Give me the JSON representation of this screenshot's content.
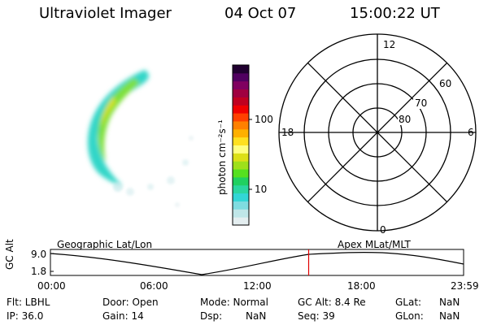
{
  "header": {
    "instrument": "Ultraviolet Imager",
    "date": "04 Oct 07",
    "time": "15:00:22 UT"
  },
  "colorbar": {
    "label": "photon cm⁻²s⁻¹",
    "ticks": [
      "100",
      "10"
    ],
    "colors": [
      "#e4eef0",
      "#bfe6e8",
      "#7fdce0",
      "#33d6d6",
      "#2bd6a0",
      "#20d060",
      "#55e020",
      "#9ee01a",
      "#dce018",
      "#ffff80",
      "#ffe020",
      "#ffb000",
      "#ff8000",
      "#ff4000",
      "#f00000",
      "#c00020",
      "#a00040",
      "#800060",
      "#500060",
      "#200030"
    ]
  },
  "polar": {
    "ring_labels": [
      "60",
      "70",
      "80"
    ],
    "mlt_labels": {
      "top": "12",
      "left": "18",
      "right": "6",
      "bottom": "0"
    }
  },
  "timeline": {
    "left_label": "Geographic Lat/Lon",
    "right_label": "Apex MLat/MLT",
    "ylabel": "GC Alt",
    "yticks": [
      "9.0",
      "1.8"
    ],
    "xticks": [
      "00:00",
      "06:00",
      "12:00",
      "18:00",
      "23:59"
    ],
    "current_time_fraction": 0.625
  },
  "info": {
    "flt": "Flt: LBHL",
    "ip": "IP: 36.0",
    "door": "Door: Open",
    "gain": "Gain: 14",
    "mode": "Mode: Normal",
    "dsp_label": "Dsp:",
    "dsp_value": "NaN",
    "gcalt": "GC Alt: 8.4 Re",
    "seq": "Seq: 39",
    "glat_label": "GLat:",
    "glat_value": "NaN",
    "glon_label": "GLon:",
    "glon_value": "NaN"
  }
}
